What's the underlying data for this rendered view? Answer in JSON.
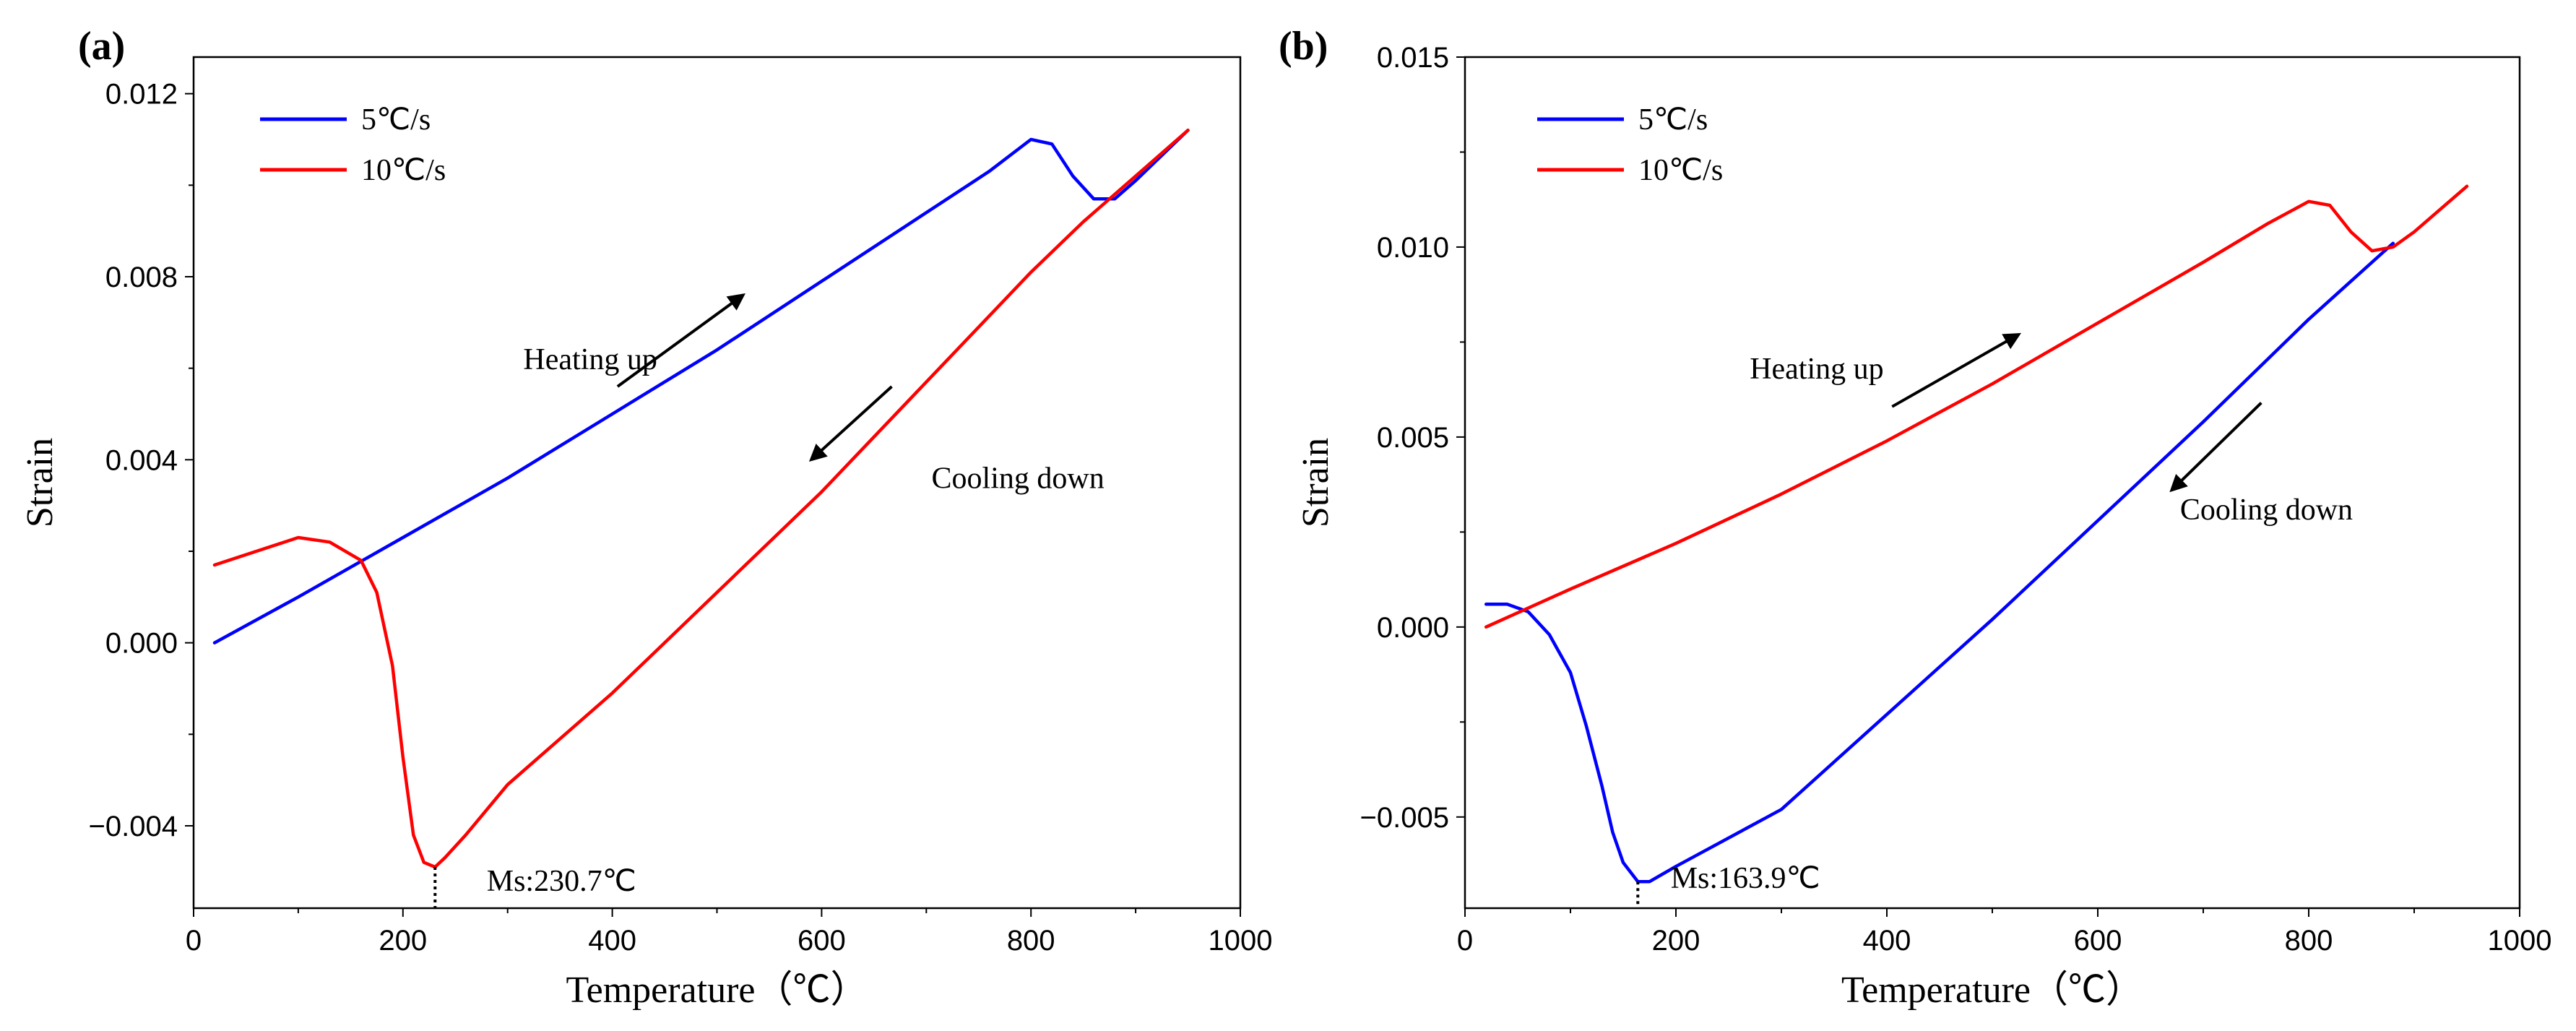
{
  "chart_data": [
    {
      "type": "line",
      "panel_label": "(a)",
      "xlabel": "Temperature（℃）",
      "ylabel": "Strain",
      "xlim": [
        0,
        1000
      ],
      "ylim": [
        -0.0058,
        0.0128
      ],
      "xticks": [
        0,
        200,
        400,
        600,
        800,
        1000
      ],
      "xtick_labels": [
        "0",
        "200",
        "400",
        "600",
        "800",
        "1000"
      ],
      "yticks": [
        -0.004,
        0.0,
        0.004,
        0.008,
        0.012
      ],
      "ytick_labels": [
        "−0.004",
        "0.000",
        "0.004",
        "0.008",
        "0.012"
      ],
      "legend": [
        {
          "name": "5℃/s",
          "color": "#0000FF"
        },
        {
          "name": "10℃/s",
          "color": "#FF0000"
        }
      ],
      "series": [
        {
          "name": "5℃/s",
          "color": "#0000FF",
          "x": [
            20,
            100,
            200,
            300,
            400,
            500,
            600,
            700,
            760,
            800,
            820,
            840,
            860,
            880,
            900,
            950
          ],
          "y": [
            0.0,
            0.001,
            0.0023,
            0.0036,
            0.005,
            0.0064,
            0.0079,
            0.0094,
            0.0103,
            0.011,
            0.0109,
            0.0102,
            0.0097,
            0.0097,
            0.0101,
            0.0112
          ]
        },
        {
          "name": "10℃/s",
          "color": "#FF0000",
          "x": [
            950,
            900,
            850,
            800,
            700,
            600,
            500,
            400,
            300,
            260,
            240,
            230.7,
            220,
            210,
            200,
            190,
            175,
            160,
            130,
            100,
            60,
            20
          ],
          "y": [
            0.0112,
            0.0102,
            0.0092,
            0.0081,
            0.0057,
            0.0033,
            0.0011,
            -0.0011,
            -0.0031,
            -0.0042,
            -0.0047,
            -0.0049,
            -0.0048,
            -0.0042,
            -0.0025,
            -0.0005,
            0.0011,
            0.0018,
            0.0022,
            0.0023,
            0.002,
            0.0017
          ]
        }
      ],
      "annotations": [
        {
          "text": "Heating up",
          "x": 315,
          "y": 0.0062
        },
        {
          "text": "Cooling down",
          "x": 705,
          "y": 0.0036
        },
        {
          "text": "Ms:230.7℃",
          "x": 280,
          "y": -0.0052
        }
      ],
      "arrows": [
        {
          "x1": 405,
          "y1": 0.0056,
          "x2": 525,
          "y2": 0.0076
        },
        {
          "x1": 667,
          "y1": 0.0056,
          "x2": 590,
          "y2": 0.004
        }
      ],
      "ms_marker": {
        "x": 230.7,
        "y_from": -0.0049,
        "y_to": -0.0058
      }
    },
    {
      "type": "line",
      "panel_label": "(b)",
      "xlabel": "Temperature（℃）",
      "ylabel": "Strain",
      "xlim": [
        0,
        1000
      ],
      "ylim": [
        -0.0074,
        0.015
      ],
      "xticks": [
        0,
        200,
        400,
        600,
        800,
        1000
      ],
      "xtick_labels": [
        "0",
        "200",
        "400",
        "600",
        "800",
        "1000"
      ],
      "yticks": [
        -0.005,
        0.0,
        0.005,
        0.01,
        0.015
      ],
      "ytick_labels": [
        "−0.005",
        "0.000",
        "0.005",
        "0.010",
        "0.015"
      ],
      "legend": [
        {
          "name": "5℃/s",
          "color": "#0000FF"
        },
        {
          "name": "10℃/s",
          "color": "#FF0000"
        }
      ],
      "series": [
        {
          "name": "5℃/s",
          "color": "#0000FF",
          "x": [
            880,
            800,
            700,
            600,
            500,
            400,
            300,
            200,
            175,
            163.9,
            150,
            140,
            130,
            115,
            100,
            80,
            60,
            40,
            20
          ],
          "y": [
            0.0101,
            0.0081,
            0.0054,
            0.0028,
            0.0002,
            -0.0023,
            -0.0048,
            -0.0063,
            -0.0067,
            -0.0067,
            -0.0062,
            -0.0054,
            -0.0042,
            -0.0026,
            -0.0012,
            -0.0002,
            0.0004,
            0.0006,
            0.0006
          ]
        },
        {
          "name": "10℃/s",
          "color": "#FF0000",
          "x": [
            20,
            100,
            200,
            300,
            400,
            500,
            600,
            700,
            760,
            800,
            820,
            840,
            860,
            880,
            900,
            950
          ],
          "y": [
            0.0,
            0.001,
            0.0022,
            0.0035,
            0.0049,
            0.0064,
            0.008,
            0.0096,
            0.0106,
            0.0112,
            0.0111,
            0.0104,
            0.0099,
            0.01,
            0.0104,
            0.0116
          ]
        }
      ],
      "annotations": [
        {
          "text": "Heating up",
          "x": 270,
          "y": 0.0068
        },
        {
          "text": "Cooling down",
          "x": 678,
          "y": 0.0031
        },
        {
          "text": "Ms:163.9℃",
          "x": 195,
          "y": -0.0066
        }
      ],
      "arrows": [
        {
          "x1": 405,
          "y1": 0.0058,
          "x2": 525,
          "y2": 0.0077
        },
        {
          "x1": 755,
          "y1": 0.0059,
          "x2": 670,
          "y2": 0.0036
        }
      ],
      "ms_marker": {
        "x": 163.9,
        "y_from": -0.0067,
        "y_to": -0.0074
      }
    }
  ]
}
